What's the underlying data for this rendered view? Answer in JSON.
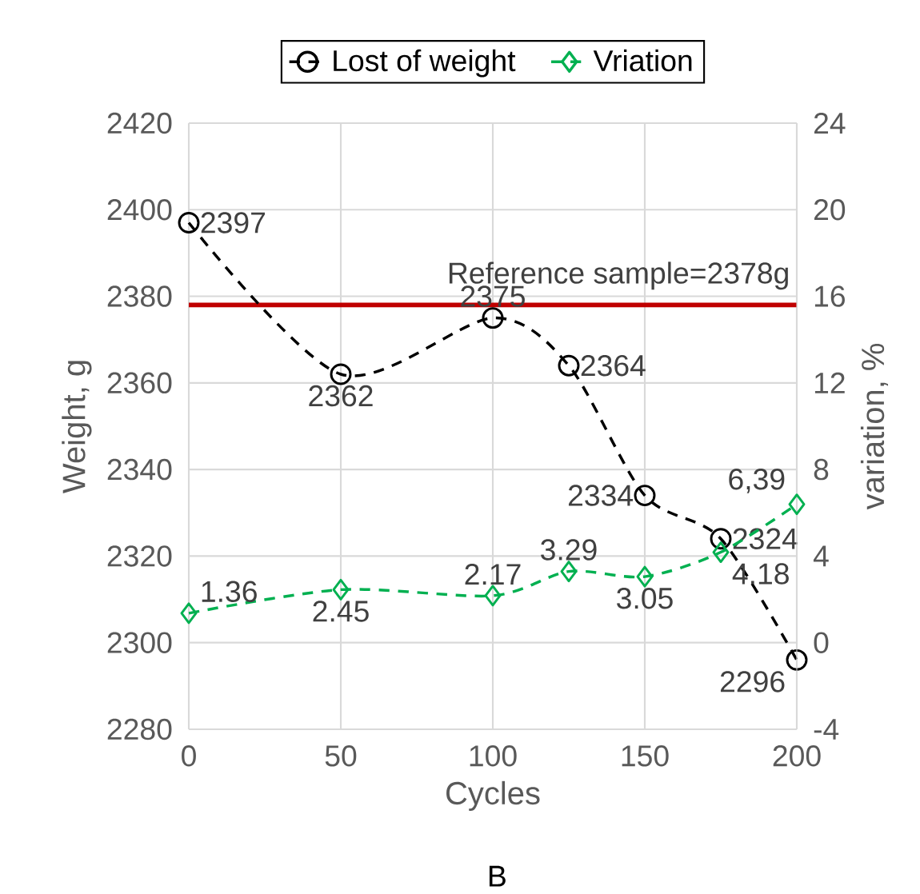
{
  "chart_data": {
    "type": "line",
    "x": [
      0,
      50,
      100,
      125,
      150,
      175,
      200
    ],
    "xlim": [
      0,
      200
    ],
    "xticks": [
      0,
      50,
      100,
      150,
      200
    ],
    "ylim": [
      2280,
      2420
    ],
    "yticks": [
      2280,
      2300,
      2320,
      2340,
      2360,
      2380,
      2400,
      2420
    ],
    "y2lim": [
      -4,
      24
    ],
    "y2ticks": [
      -4,
      0,
      4,
      8,
      12,
      16,
      20,
      24
    ],
    "xlabel": "Cycles",
    "ylabel": "Weight, g",
    "y2label": "variation, %",
    "grid": true,
    "legend": "top",
    "series": [
      {
        "name": "Lost of weight",
        "color": "#000000",
        "marker": "circle",
        "line_style": "dashed",
        "values": [
          2397,
          2362,
          2375,
          2364,
          2334,
          2324,
          2296
        ],
        "value_labels": [
          "2397",
          "2362",
          "2375",
          "2364",
          "2334",
          "2324",
          "2296"
        ]
      },
      {
        "name": "Vriation",
        "color": "#00b050",
        "marker": "diamond",
        "line_style": "dashed",
        "axis": "y2",
        "values": [
          1.36,
          2.45,
          2.17,
          3.29,
          3.05,
          4.18,
          6.39
        ],
        "value_labels": [
          "1.36",
          "2.45",
          "2.17",
          "3.29",
          "3.05",
          "4.18",
          "6,39"
        ]
      }
    ],
    "ref_lines": [
      {
        "axis": "y",
        "value": 2378,
        "label": "Reference sample=2378g",
        "color": "#c00000"
      }
    ],
    "annotations": [
      "B"
    ]
  }
}
